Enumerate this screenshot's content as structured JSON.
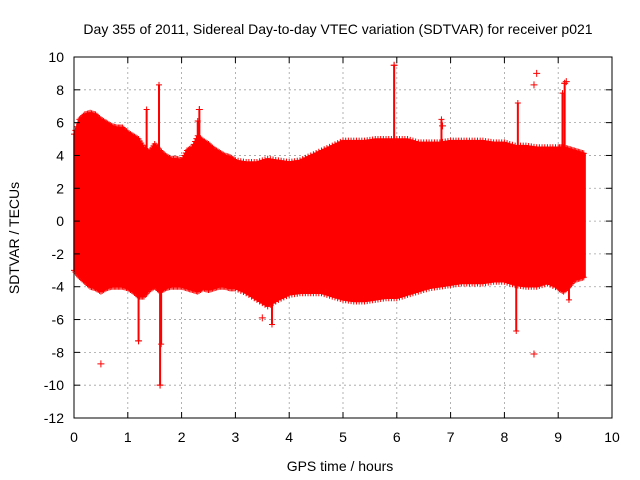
{
  "chart_data": {
    "type": "scatter",
    "title": "Day 355 of 2011, Sidereal Day-to-day VTEC variation (SDTVAR) for receiver p021",
    "xlabel": "GPS time / hours",
    "ylabel": "SDTVAR / TECUs",
    "xlim": [
      0,
      10
    ],
    "ylim": [
      -12,
      10
    ],
    "xticks": [
      "0",
      "1",
      "2",
      "3",
      "4",
      "5",
      "6",
      "7",
      "8",
      "9",
      "10"
    ],
    "yticks": [
      "-12",
      "-10",
      "-8",
      "-6",
      "-4",
      "-2",
      "0",
      "2",
      "4",
      "6",
      "8",
      "10"
    ],
    "grid": true,
    "marker": "+",
    "series_color": "#ff0000",
    "series": [
      {
        "name": "SDTVAR",
        "envelope": {
          "x": [
            0.0,
            0.1,
            0.2,
            0.3,
            0.4,
            0.5,
            0.6,
            0.7,
            0.8,
            0.9,
            1.0,
            1.1,
            1.2,
            1.3,
            1.4,
            1.5,
            1.6,
            1.7,
            1.8,
            1.9,
            2.0,
            2.1,
            2.2,
            2.3,
            2.4,
            2.5,
            2.6,
            2.7,
            2.8,
            2.9,
            3.0,
            3.2,
            3.4,
            3.6,
            3.8,
            4.0,
            4.2,
            4.4,
            4.6,
            4.8,
            5.0,
            5.2,
            5.4,
            5.6,
            5.8,
            6.0,
            6.2,
            6.4,
            6.6,
            6.8,
            7.0,
            7.2,
            7.4,
            7.6,
            7.8,
            8.0,
            8.2,
            8.4,
            8.6,
            8.8,
            9.0,
            9.1,
            9.2,
            9.3,
            9.4,
            9.5
          ],
          "upper": [
            5.3,
            6.2,
            6.5,
            6.6,
            6.5,
            6.2,
            6.0,
            5.8,
            5.7,
            5.7,
            5.4,
            5.2,
            5.0,
            4.5,
            4.2,
            4.7,
            4.3,
            4.0,
            3.8,
            3.8,
            3.7,
            4.3,
            4.5,
            5.2,
            4.9,
            4.7,
            4.4,
            4.2,
            4.0,
            3.9,
            3.7,
            3.6,
            3.6,
            3.8,
            3.7,
            3.6,
            3.7,
            4.0,
            4.3,
            4.6,
            4.9,
            4.9,
            4.9,
            5.0,
            5.0,
            5.0,
            5.0,
            4.8,
            4.8,
            4.8,
            4.9,
            4.9,
            4.9,
            4.9,
            4.8,
            4.8,
            4.6,
            4.6,
            4.5,
            4.5,
            4.5,
            4.5,
            4.4,
            4.3,
            4.2,
            4.1
          ],
          "lower": [
            -3.0,
            -3.4,
            -3.7,
            -4.0,
            -4.1,
            -4.3,
            -4.1,
            -4.0,
            -4.0,
            -4.0,
            -4.1,
            -4.3,
            -4.6,
            -4.6,
            -4.2,
            -4.0,
            -4.3,
            -4.1,
            -4.0,
            -4.0,
            -4.0,
            -4.1,
            -4.2,
            -4.3,
            -4.1,
            -4.2,
            -4.1,
            -4.0,
            -4.0,
            -4.1,
            -4.1,
            -4.4,
            -4.8,
            -5.2,
            -4.8,
            -4.5,
            -4.4,
            -4.4,
            -4.4,
            -4.6,
            -4.8,
            -4.9,
            -4.9,
            -4.8,
            -4.7,
            -4.7,
            -4.5,
            -4.3,
            -4.1,
            -4.0,
            -3.9,
            -3.8,
            -3.8,
            -3.8,
            -3.7,
            -3.7,
            -3.9,
            -4.0,
            -4.0,
            -3.8,
            -4.1,
            -4.3,
            -4.0,
            -3.6,
            -3.5,
            -3.4
          ]
        },
        "spikes": [
          {
            "x": 0.75,
            "y": 2.5
          },
          {
            "x": 1.35,
            "y": 6.8
          },
          {
            "x": 1.2,
            "y": -7.3
          },
          {
            "x": 1.58,
            "y": 8.3
          },
          {
            "x": 1.6,
            "y": -10.0
          },
          {
            "x": 1.62,
            "y": -7.5
          },
          {
            "x": 2.33,
            "y": 6.8
          },
          {
            "x": 2.3,
            "y": 6.1
          },
          {
            "x": 3.68,
            "y": -6.3
          },
          {
            "x": 5.95,
            "y": 9.5
          },
          {
            "x": 6.83,
            "y": 6.2
          },
          {
            "x": 8.25,
            "y": 7.2
          },
          {
            "x": 8.22,
            "y": -6.7
          },
          {
            "x": 9.08,
            "y": 7.8
          },
          {
            "x": 9.12,
            "y": 8.4
          },
          {
            "x": 9.2,
            "y": -4.8
          }
        ],
        "outliers": [
          {
            "x": 0.5,
            "y": -8.7
          },
          {
            "x": 1.2,
            "y": -7.3
          },
          {
            "x": 1.6,
            "y": -10.0
          },
          {
            "x": 3.5,
            "y": -5.9
          },
          {
            "x": 5.95,
            "y": 9.5
          },
          {
            "x": 8.55,
            "y": 8.3
          },
          {
            "x": 8.6,
            "y": 9.0
          },
          {
            "x": 8.55,
            "y": -8.1
          },
          {
            "x": 9.12,
            "y": 8.4
          },
          {
            "x": 9.15,
            "y": 8.5
          },
          {
            "x": 2.33,
            "y": 6.8
          },
          {
            "x": 6.85,
            "y": 5.8
          }
        ]
      }
    ]
  }
}
